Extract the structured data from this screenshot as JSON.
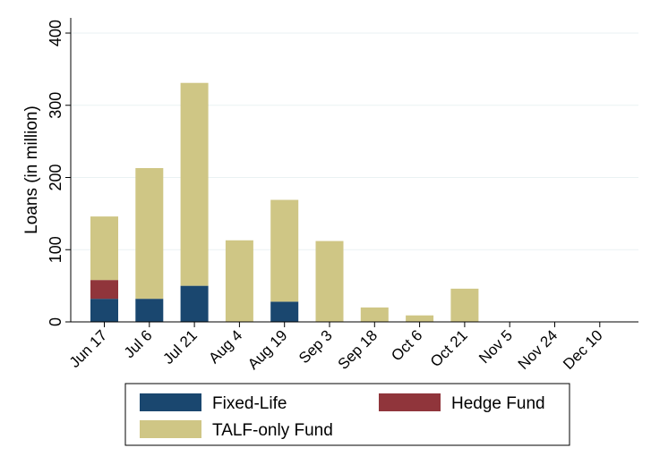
{
  "chart_data": {
    "type": "bar",
    "stacked": true,
    "categories": [
      "Jun 17",
      "Jul 6",
      "Jul 21",
      "Aug 4",
      "Aug 19",
      "Sep 3",
      "Sep 18",
      "Oct 6",
      "Oct 21",
      "Nov 5",
      "Nov 24",
      "Dec 10"
    ],
    "series": [
      {
        "name": "Fixed-Life",
        "color": "#1a476f",
        "values": [
          32,
          32,
          50,
          0,
          28,
          0,
          0,
          0,
          0,
          0,
          0,
          0
        ]
      },
      {
        "name": "Hedge Fund",
        "color": "#90353b",
        "values": [
          26,
          0,
          0,
          0,
          0,
          0,
          0,
          0,
          0,
          0,
          0,
          0
        ]
      },
      {
        "name": "TALF-only Fund",
        "color": "#cfc685",
        "values": [
          88,
          181,
          281,
          113,
          141,
          112,
          20,
          9,
          46,
          0,
          0,
          0
        ]
      }
    ],
    "ylabel": "Loans (in million)",
    "xlabel": "",
    "ylim": [
      0,
      400
    ],
    "yticks": [
      0,
      100,
      200,
      300,
      400
    ],
    "grid": true,
    "legend": "bottom",
    "legend_order": [
      "Fixed-Life",
      "Hedge Fund",
      "TALF-only Fund"
    ]
  }
}
